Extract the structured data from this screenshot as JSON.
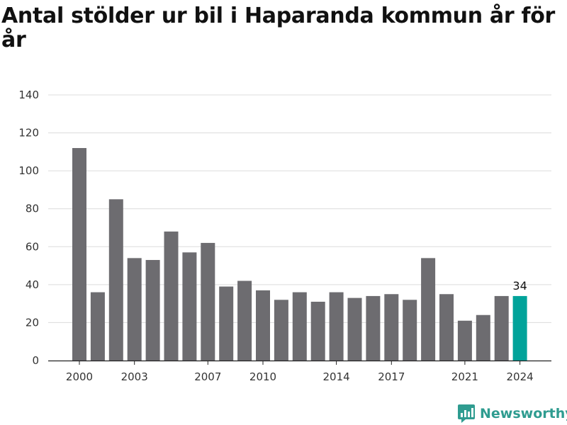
{
  "title": "Antal stölder ur bil i Haparanda kommun år för år",
  "brand": {
    "name": "Newsworthy",
    "logo_icon": "newsworthy-chart-logo-icon",
    "color": "#2f9c90"
  },
  "chart_data": {
    "type": "bar",
    "title": "Antal stölder ur bil i Haparanda kommun år för år",
    "xlabel": "",
    "ylabel": "",
    "categories": [
      "2000",
      "2001",
      "2002",
      "2003",
      "2004",
      "2005",
      "2006",
      "2007",
      "2008",
      "2009",
      "2010",
      "2011",
      "2012",
      "2013",
      "2014",
      "2015",
      "2016",
      "2017",
      "2018",
      "2019",
      "2020",
      "2021",
      "2022",
      "2023",
      "2024"
    ],
    "values": [
      112,
      36,
      85,
      54,
      53,
      68,
      57,
      62,
      39,
      42,
      37,
      32,
      36,
      31,
      36,
      33,
      34,
      35,
      32,
      54,
      35,
      21,
      24,
      34,
      34
    ],
    "x_tick_labels": [
      "2000",
      "2003",
      "2007",
      "2010",
      "2014",
      "2017",
      "2021",
      "2024"
    ],
    "y_ticks": [
      0,
      20,
      40,
      60,
      80,
      100,
      120,
      140
    ],
    "ylim": [
      0,
      140
    ],
    "grid": "horizontal",
    "bar_color": "#6d6c70",
    "highlight": {
      "category": "2024",
      "color": "#00a39a",
      "label": "34"
    }
  }
}
